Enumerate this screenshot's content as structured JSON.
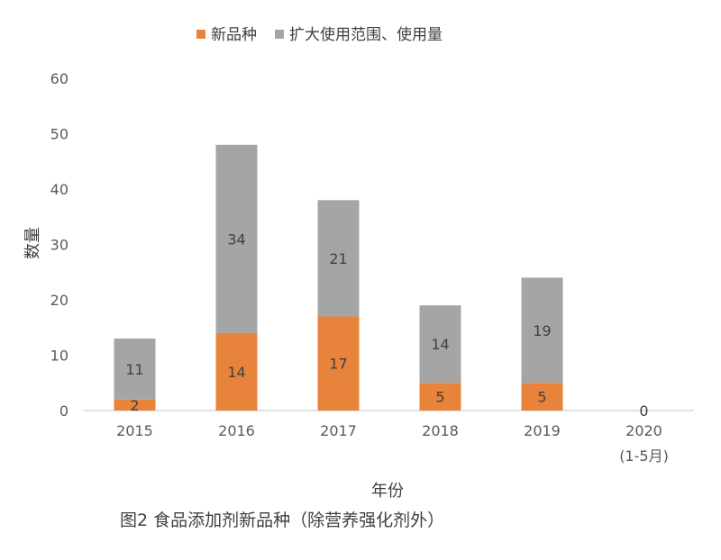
{
  "chart_data": {
    "type": "bar",
    "stacked": true,
    "categories": [
      "2015",
      "2016",
      "2017",
      "2018",
      "2019",
      "2020"
    ],
    "category_sublabels": [
      "",
      "",
      "",
      "",
      "",
      "(1-5月)"
    ],
    "series": [
      {
        "name": "新品种",
        "values": [
          2,
          14,
          17,
          5,
          5,
          0
        ],
        "color": "#E7833B"
      },
      {
        "name": "扩大使用范围、使用量",
        "values": [
          11,
          34,
          21,
          14,
          19,
          0
        ],
        "color": "#A5A5A5"
      }
    ],
    "title": "",
    "xlabel": "年份",
    "ylabel": "数量",
    "ylim": [
      0,
      60
    ],
    "yticks": [
      0,
      10,
      20,
      30,
      40,
      50,
      60
    ],
    "legend_position": "top-center",
    "grid": false
  },
  "caption": "图2 食品添加剂新品种（除营养强化剂外）"
}
